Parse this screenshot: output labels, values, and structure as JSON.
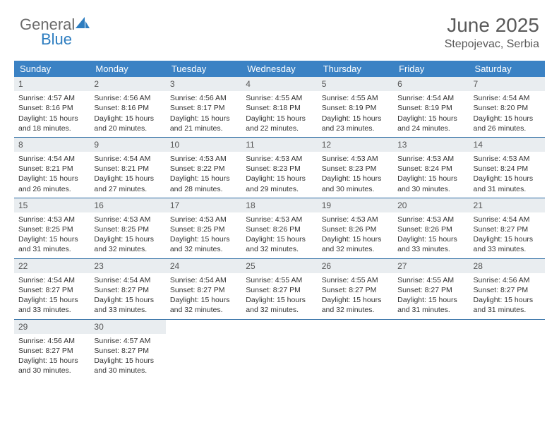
{
  "brand": {
    "word1": "General",
    "word2": "Blue"
  },
  "title": "June 2025",
  "location": "Stepojevac, Serbia",
  "colors": {
    "header_bg": "#3b82c4",
    "header_text": "#ffffff",
    "week_border": "#2d6ca3",
    "daynum_bg": "#e9edf0",
    "text": "#333333",
    "brand_gray": "#6b6b6b",
    "brand_blue": "#2d7dc0"
  },
  "weekdays": [
    "Sunday",
    "Monday",
    "Tuesday",
    "Wednesday",
    "Thursday",
    "Friday",
    "Saturday"
  ],
  "weeks": [
    [
      {
        "n": "1",
        "sr": "4:57 AM",
        "ss": "8:16 PM",
        "dl1": "15 hours",
        "dl2": "and 18 minutes."
      },
      {
        "n": "2",
        "sr": "4:56 AM",
        "ss": "8:16 PM",
        "dl1": "15 hours",
        "dl2": "and 20 minutes."
      },
      {
        "n": "3",
        "sr": "4:56 AM",
        "ss": "8:17 PM",
        "dl1": "15 hours",
        "dl2": "and 21 minutes."
      },
      {
        "n": "4",
        "sr": "4:55 AM",
        "ss": "8:18 PM",
        "dl1": "15 hours",
        "dl2": "and 22 minutes."
      },
      {
        "n": "5",
        "sr": "4:55 AM",
        "ss": "8:19 PM",
        "dl1": "15 hours",
        "dl2": "and 23 minutes."
      },
      {
        "n": "6",
        "sr": "4:54 AM",
        "ss": "8:19 PM",
        "dl1": "15 hours",
        "dl2": "and 24 minutes."
      },
      {
        "n": "7",
        "sr": "4:54 AM",
        "ss": "8:20 PM",
        "dl1": "15 hours",
        "dl2": "and 26 minutes."
      }
    ],
    [
      {
        "n": "8",
        "sr": "4:54 AM",
        "ss": "8:21 PM",
        "dl1": "15 hours",
        "dl2": "and 26 minutes."
      },
      {
        "n": "9",
        "sr": "4:54 AM",
        "ss": "8:21 PM",
        "dl1": "15 hours",
        "dl2": "and 27 minutes."
      },
      {
        "n": "10",
        "sr": "4:53 AM",
        "ss": "8:22 PM",
        "dl1": "15 hours",
        "dl2": "and 28 minutes."
      },
      {
        "n": "11",
        "sr": "4:53 AM",
        "ss": "8:23 PM",
        "dl1": "15 hours",
        "dl2": "and 29 minutes."
      },
      {
        "n": "12",
        "sr": "4:53 AM",
        "ss": "8:23 PM",
        "dl1": "15 hours",
        "dl2": "and 30 minutes."
      },
      {
        "n": "13",
        "sr": "4:53 AM",
        "ss": "8:24 PM",
        "dl1": "15 hours",
        "dl2": "and 30 minutes."
      },
      {
        "n": "14",
        "sr": "4:53 AM",
        "ss": "8:24 PM",
        "dl1": "15 hours",
        "dl2": "and 31 minutes."
      }
    ],
    [
      {
        "n": "15",
        "sr": "4:53 AM",
        "ss": "8:25 PM",
        "dl1": "15 hours",
        "dl2": "and 31 minutes."
      },
      {
        "n": "16",
        "sr": "4:53 AM",
        "ss": "8:25 PM",
        "dl1": "15 hours",
        "dl2": "and 32 minutes."
      },
      {
        "n": "17",
        "sr": "4:53 AM",
        "ss": "8:25 PM",
        "dl1": "15 hours",
        "dl2": "and 32 minutes."
      },
      {
        "n": "18",
        "sr": "4:53 AM",
        "ss": "8:26 PM",
        "dl1": "15 hours",
        "dl2": "and 32 minutes."
      },
      {
        "n": "19",
        "sr": "4:53 AM",
        "ss": "8:26 PM",
        "dl1": "15 hours",
        "dl2": "and 32 minutes."
      },
      {
        "n": "20",
        "sr": "4:53 AM",
        "ss": "8:26 PM",
        "dl1": "15 hours",
        "dl2": "and 33 minutes."
      },
      {
        "n": "21",
        "sr": "4:54 AM",
        "ss": "8:27 PM",
        "dl1": "15 hours",
        "dl2": "and 33 minutes."
      }
    ],
    [
      {
        "n": "22",
        "sr": "4:54 AM",
        "ss": "8:27 PM",
        "dl1": "15 hours",
        "dl2": "and 33 minutes."
      },
      {
        "n": "23",
        "sr": "4:54 AM",
        "ss": "8:27 PM",
        "dl1": "15 hours",
        "dl2": "and 33 minutes."
      },
      {
        "n": "24",
        "sr": "4:54 AM",
        "ss": "8:27 PM",
        "dl1": "15 hours",
        "dl2": "and 32 minutes."
      },
      {
        "n": "25",
        "sr": "4:55 AM",
        "ss": "8:27 PM",
        "dl1": "15 hours",
        "dl2": "and 32 minutes."
      },
      {
        "n": "26",
        "sr": "4:55 AM",
        "ss": "8:27 PM",
        "dl1": "15 hours",
        "dl2": "and 32 minutes."
      },
      {
        "n": "27",
        "sr": "4:55 AM",
        "ss": "8:27 PM",
        "dl1": "15 hours",
        "dl2": "and 31 minutes."
      },
      {
        "n": "28",
        "sr": "4:56 AM",
        "ss": "8:27 PM",
        "dl1": "15 hours",
        "dl2": "and 31 minutes."
      }
    ],
    [
      {
        "n": "29",
        "sr": "4:56 AM",
        "ss": "8:27 PM",
        "dl1": "15 hours",
        "dl2": "and 30 minutes."
      },
      {
        "n": "30",
        "sr": "4:57 AM",
        "ss": "8:27 PM",
        "dl1": "15 hours",
        "dl2": "and 30 minutes."
      },
      null,
      null,
      null,
      null,
      null
    ]
  ],
  "labels": {
    "sunrise": "Sunrise: ",
    "sunset": "Sunset: ",
    "daylight": "Daylight: "
  }
}
